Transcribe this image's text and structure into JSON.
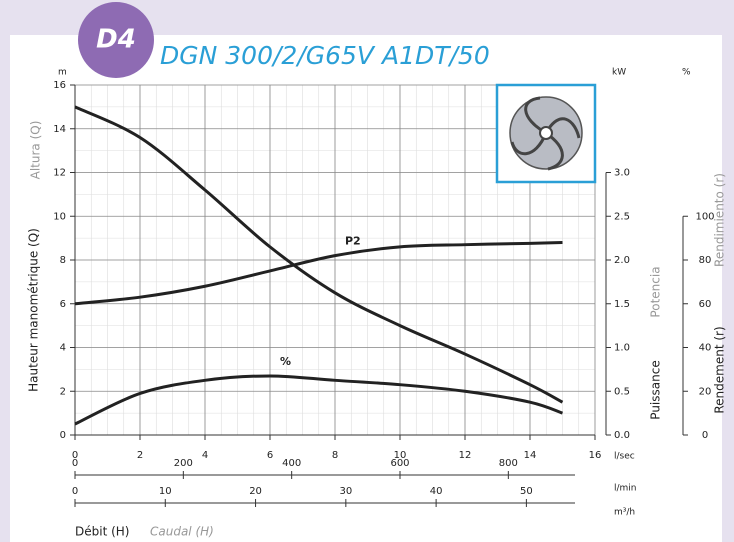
{
  "chart_data": {
    "type": "line",
    "badge": "D4",
    "title": "DGN 300/2/G65V A1DT/50",
    "y_unit": "m",
    "y2_unit": "kW",
    "y3_unit": "%",
    "x_unit": "l/sec",
    "x2_unit": "l/min",
    "x3_unit": "m³/h",
    "y_labels": [
      "Altura (Q)",
      "Hauteur manométrique (Q)"
    ],
    "y2_labels": [
      "Potencia",
      "Puissance"
    ],
    "y3_labels": [
      "Rendimiento (r)",
      "Rendement (r)"
    ],
    "x_labels": [
      "Débit (H)",
      "Caudal (H)"
    ],
    "x": [
      0,
      2,
      4,
      6,
      8,
      10,
      12,
      14,
      15
    ],
    "xlim": [
      0,
      16
    ],
    "xticks": [
      0,
      2,
      4,
      6,
      8,
      10,
      12,
      14,
      16
    ],
    "x2lim": [
      0,
      960
    ],
    "x2ticks": [
      0,
      200,
      400,
      600,
      800
    ],
    "x3lim": [
      0,
      57.6
    ],
    "x3ticks": [
      0,
      10,
      20,
      30,
      40,
      50
    ],
    "ylim": [
      0,
      16
    ],
    "yticks": [
      0,
      2,
      4,
      6,
      8,
      10,
      12,
      14,
      16
    ],
    "y2lim": [
      0,
      4
    ],
    "y2ticks": [
      {
        "value": 0,
        "label": "0.0"
      },
      0.5,
      {
        "value": 1,
        "label": "1.0"
      },
      1.5,
      {
        "value": 2,
        "label": "2.0"
      },
      2.5,
      {
        "value": 3,
        "label": "3.0"
      }
    ],
    "y3lim": [
      0,
      160
    ],
    "y3ticks": [
      0,
      20,
      40,
      60,
      80,
      100
    ],
    "grid": true,
    "series": [
      {
        "values": [
          15,
          13.6,
          11.2,
          8.6,
          6.5,
          5.0,
          3.7,
          2.3,
          1.5
        ],
        "color": "#222222",
        "axis": "y"
      },
      {
        "name": "P2",
        "values": [
          1.5,
          1.575,
          1.7,
          1.875,
          2.05,
          2.15,
          2.175,
          2.19,
          2.2
        ],
        "color": "#222222",
        "axis": "y2"
      },
      {
        "name": "%",
        "values": [
          5,
          19,
          25,
          27,
          25,
          23,
          20,
          15,
          10
        ],
        "color": "#222222",
        "axis": "y3"
      }
    ]
  }
}
